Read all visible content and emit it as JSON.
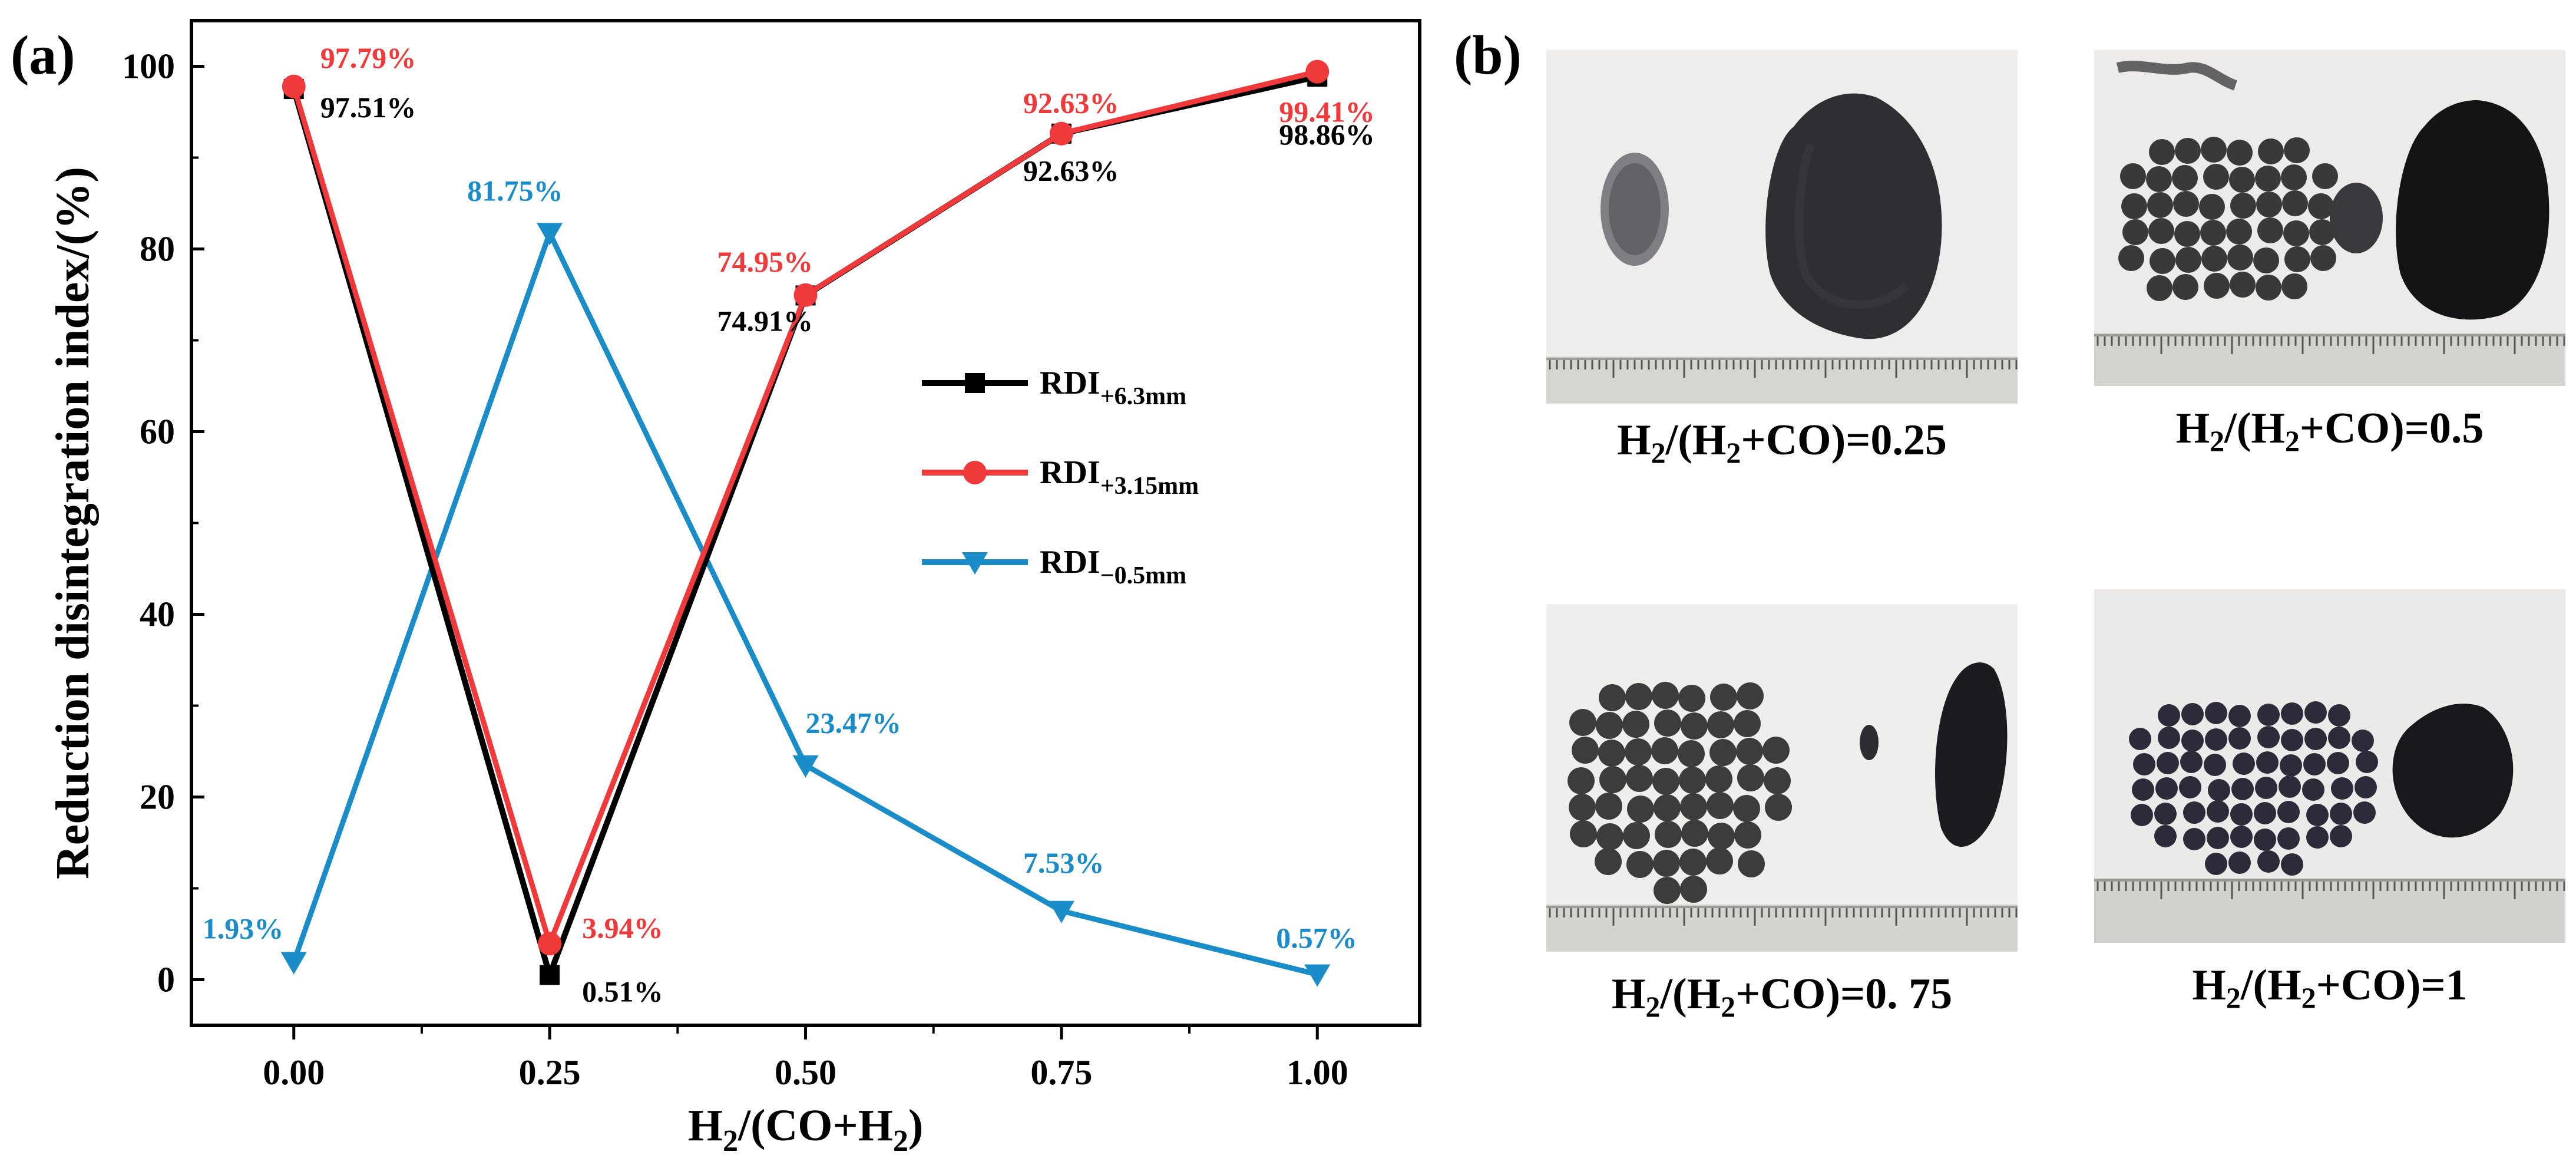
{
  "panel_a": {
    "label": "(a)"
  },
  "panel_b": {
    "label": "(b)"
  },
  "colors": {
    "black": "#000000",
    "red": "#f0393b",
    "blue": "#1a8dc8"
  },
  "chart_data": {
    "type": "line",
    "title": "",
    "xlabel": {
      "main": "H",
      "sub1": "2",
      "mid": "/(CO+H",
      "sub2": "2",
      "end": ")"
    },
    "ylabel": "Reduction disintegration index/(%)",
    "x": [
      0.0,
      0.25,
      0.5,
      0.75,
      1.0
    ],
    "xlim": [
      -0.1,
      1.1
    ],
    "ylim": [
      -5,
      105
    ],
    "x_ticks": [
      {
        "v": 0.0,
        "label": "0.00"
      },
      {
        "v": 0.25,
        "label": "0.25"
      },
      {
        "v": 0.5,
        "label": "0.50"
      },
      {
        "v": 0.75,
        "label": "0.75"
      },
      {
        "v": 1.0,
        "label": "1.00"
      }
    ],
    "y_ticks": [
      {
        "v": 0,
        "label": "0"
      },
      {
        "v": 20,
        "label": "20"
      },
      {
        "v": 40,
        "label": "40"
      },
      {
        "v": 60,
        "label": "60"
      },
      {
        "v": 80,
        "label": "80"
      },
      {
        "v": 100,
        "label": "100"
      }
    ],
    "grid": false,
    "legend_position": "center-right",
    "series": [
      {
        "name": "RDI+6.3mm",
        "legend_main": "RDI",
        "legend_sub": "+6.3mm",
        "color": "#000000",
        "marker": "square",
        "values": [
          97.51,
          0.51,
          74.91,
          92.63,
          98.86
        ],
        "labels": [
          "97.51%",
          "0.51%",
          "74.91%",
          "92.63%",
          "98.86%"
        ]
      },
      {
        "name": "RDI+3.15mm",
        "legend_main": "RDI",
        "legend_sub": "+3.15mm",
        "color": "#f0393b",
        "marker": "circle",
        "values": [
          97.79,
          3.94,
          74.95,
          92.63,
          99.41
        ],
        "labels": [
          "97.79%",
          "3.94%",
          "74.95%",
          "92.63%",
          "99.41%"
        ]
      },
      {
        "name": "RDI-0.5mm",
        "legend_main": "RDI",
        "legend_sub": "−0.5mm",
        "color": "#1a8dc8",
        "marker": "triangle-down",
        "values": [
          1.93,
          81.75,
          23.47,
          7.53,
          0.57
        ],
        "labels": [
          "1.93%",
          "81.75%",
          "23.47%",
          "7.53%",
          "0.57%"
        ]
      }
    ]
  },
  "photos": [
    {
      "caption": {
        "a": "H",
        "s1": "2",
        "b": "/(H",
        "s2": "2",
        "c": "+CO)=0.25"
      }
    },
    {
      "caption": {
        "a": "H",
        "s1": "2",
        "b": "/(H",
        "s2": "2",
        "c": "+CO)=0.5"
      }
    },
    {
      "caption": {
        "a": "H",
        "s1": "2",
        "b": "/(H",
        "s2": "2",
        "c": "+CO)=0. 75"
      }
    },
    {
      "caption": {
        "a": "H",
        "s1": "2",
        "b": "/(H",
        "s2": "2",
        "c": "+CO)=1"
      }
    }
  ]
}
